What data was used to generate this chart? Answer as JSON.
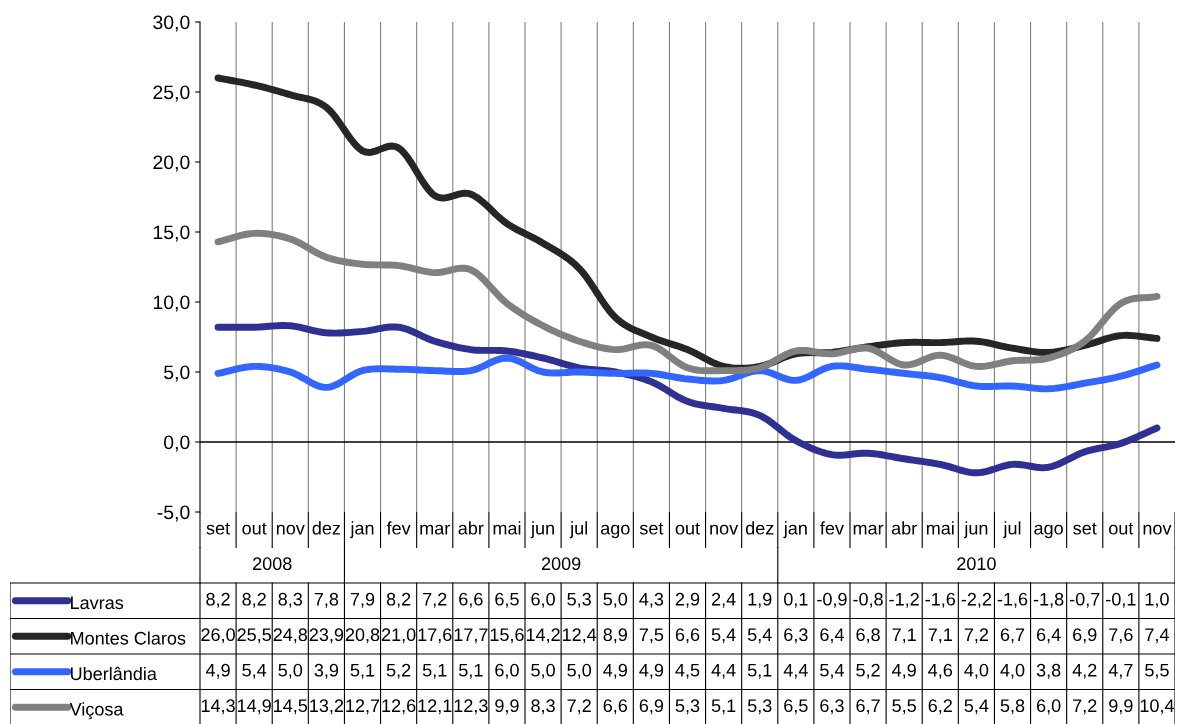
{
  "chart_data": {
    "type": "line",
    "categories": [
      "set",
      "out",
      "nov",
      "dez",
      "jan",
      "fev",
      "mar",
      "abr",
      "mai",
      "jun",
      "jul",
      "ago",
      "set",
      "out",
      "nov",
      "dez",
      "jan",
      "fev",
      "mar",
      "abr",
      "mai",
      "jun",
      "jul",
      "ago",
      "set",
      "out",
      "nov"
    ],
    "series": [
      {
        "name": "Lavras",
        "color": "#2e3192",
        "values": [
          8.2,
          8.2,
          8.3,
          7.8,
          7.9,
          8.2,
          7.2,
          6.6,
          6.5,
          6.0,
          5.3,
          5.0,
          4.3,
          2.9,
          2.4,
          1.9,
          0.1,
          -0.9,
          -0.8,
          -1.2,
          -1.6,
          -2.2,
          -1.6,
          -1.8,
          -0.7,
          -0.1,
          1.0
        ],
        "value_labels": [
          "8,2",
          "8,2",
          "8,3",
          "7,8",
          "7,9",
          "8,2",
          "7,2",
          "6,6",
          "6,5",
          "6,0",
          "5,3",
          "5,0",
          "4,3",
          "2,9",
          "2,4",
          "1,9",
          "0,1",
          "-0,9",
          "-0,8",
          "-1,2",
          "-1,6",
          "-2,2",
          "-1,6",
          "-1,8",
          "-0,7",
          "-0,1",
          "1,0"
        ]
      },
      {
        "name": "Montes Claros",
        "color": "#262626",
        "values": [
          26.0,
          25.5,
          24.8,
          23.9,
          20.8,
          21.0,
          17.6,
          17.7,
          15.6,
          14.2,
          12.4,
          8.9,
          7.5,
          6.6,
          5.4,
          5.4,
          6.3,
          6.4,
          6.8,
          7.1,
          7.1,
          7.2,
          6.7,
          6.4,
          6.9,
          7.6,
          7.4
        ],
        "value_labels": [
          "26,0",
          "25,5",
          "24,8",
          "23,9",
          "20,8",
          "21,0",
          "17,6",
          "17,7",
          "15,6",
          "14,2",
          "12,4",
          "8,9",
          "7,5",
          "6,6",
          "5,4",
          "5,4",
          "6,3",
          "6,4",
          "6,8",
          "7,1",
          "7,1",
          "7,2",
          "6,7",
          "6,4",
          "6,9",
          "7,6",
          "7,4"
        ]
      },
      {
        "name": "Uberlândia",
        "color": "#3366ff",
        "values": [
          4.9,
          5.4,
          5.0,
          3.9,
          5.1,
          5.2,
          5.1,
          5.1,
          6.0,
          5.0,
          5.0,
          4.9,
          4.9,
          4.5,
          4.4,
          5.1,
          4.4,
          5.4,
          5.2,
          4.9,
          4.6,
          4.0,
          4.0,
          3.8,
          4.2,
          4.7,
          5.5
        ],
        "value_labels": [
          "4,9",
          "5,4",
          "5,0",
          "3,9",
          "5,1",
          "5,2",
          "5,1",
          "5,1",
          "6,0",
          "5,0",
          "5,0",
          "4,9",
          "4,9",
          "4,5",
          "4,4",
          "5,1",
          "4,4",
          "5,4",
          "5,2",
          "4,9",
          "4,6",
          "4,0",
          "4,0",
          "3,8",
          "4,2",
          "4,7",
          "5,5"
        ]
      },
      {
        "name": "Viçosa",
        "color": "#808080",
        "values": [
          14.3,
          14.9,
          14.5,
          13.2,
          12.7,
          12.6,
          12.1,
          12.3,
          9.9,
          8.3,
          7.2,
          6.6,
          6.9,
          5.3,
          5.1,
          5.3,
          6.5,
          6.3,
          6.7,
          5.5,
          6.2,
          5.4,
          5.8,
          6.0,
          7.2,
          9.9,
          10.4
        ],
        "value_labels": [
          "14,3",
          "14,9",
          "14,5",
          "13,2",
          "12,7",
          "12,6",
          "12,1",
          "12,3",
          "9,9",
          "8,3",
          "7,2",
          "6,6",
          "6,9",
          "5,3",
          "5,1",
          "5,3",
          "6,5",
          "6,3",
          "6,7",
          "5,5",
          "6,2",
          "5,4",
          "5,8",
          "6,0",
          "7,2",
          "9,9",
          "10,4"
        ]
      }
    ],
    "annotations": [
      "2008",
      "2009",
      "2010"
    ],
    "ylim": [
      -5,
      30
    ],
    "yticks": [
      {
        "value": -5,
        "label": "-5,0"
      },
      {
        "value": 0,
        "label": "0,0"
      },
      {
        "value": 5,
        "label": "5,0"
      },
      {
        "value": 10,
        "label": "10,0"
      },
      {
        "value": 15,
        "label": "15,0"
      },
      {
        "value": 20,
        "label": "20,0"
      },
      {
        "value": 25,
        "label": "25,0"
      },
      {
        "value": 30,
        "label": "30,0"
      }
    ],
    "ref_lines": [
      {
        "axis": "y",
        "value": 0,
        "color": "#000000"
      }
    ],
    "grid": "x",
    "legend": "bottom left",
    "marker": "none",
    "line_style": "solid"
  }
}
